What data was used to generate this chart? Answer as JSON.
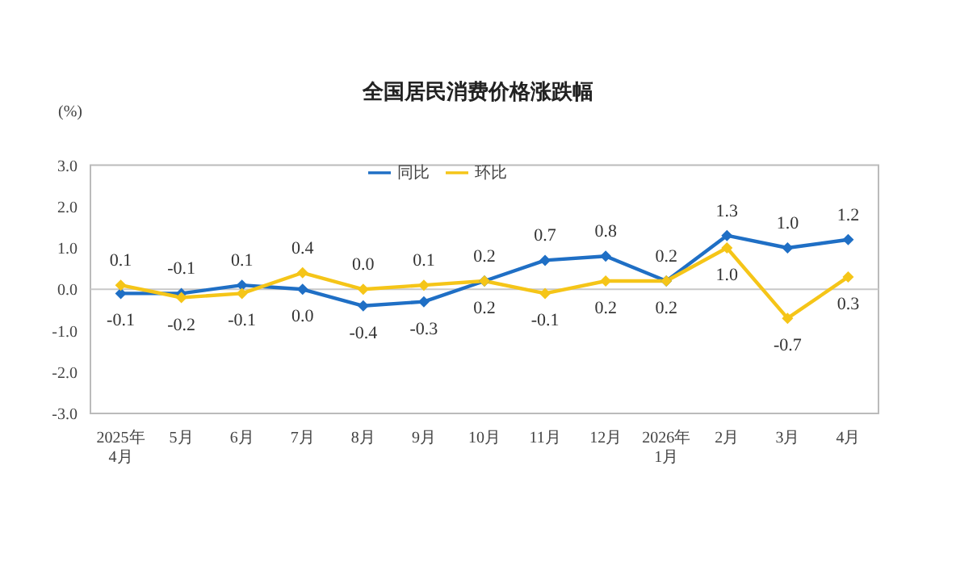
{
  "chart_data": {
    "type": "line",
    "title": "全国居民消费价格涨跌幅",
    "ylabel": "(%)",
    "categories": [
      "2025年\n4月",
      "5月",
      "6月",
      "7月",
      "8月",
      "9月",
      "10月",
      "11月",
      "12月",
      "2026年\n1月",
      "2月",
      "3月",
      "4月"
    ],
    "series": [
      {
        "name": "同比",
        "color": "#1f6fc5",
        "values": [
          -0.1,
          -0.1,
          0.1,
          0.0,
          -0.4,
          -0.3,
          0.2,
          0.7,
          0.8,
          0.2,
          1.3,
          1.0,
          1.2
        ],
        "value_labels": [
          "-0.1",
          "-0.1",
          "0.1",
          "0.0",
          "-0.4",
          "-0.3",
          "0.2",
          "0.7",
          "0.8",
          "0.2",
          "1.3",
          "1.0",
          "1.2"
        ]
      },
      {
        "name": "环比",
        "color": "#f5c518",
        "values": [
          0.1,
          -0.2,
          -0.1,
          0.4,
          0.0,
          0.1,
          0.2,
          -0.1,
          0.2,
          0.2,
          1.0,
          -0.7,
          0.3
        ],
        "value_labels": [
          "0.1",
          "-0.2",
          "-0.1",
          "0.4",
          "0.0",
          "0.1",
          "0.2",
          "-0.1",
          "0.2",
          "0.2",
          "1.0",
          "-0.7",
          "0.3"
        ]
      }
    ],
    "ylim": [
      -3.0,
      3.0
    ],
    "yticks": [
      {
        "value": -3,
        "label": "-3.0"
      },
      {
        "value": -2,
        "label": "-2.0"
      },
      {
        "value": -1,
        "label": "-1.0"
      },
      {
        "value": 0,
        "label": "0.0"
      },
      {
        "value": 1,
        "label": "1.0"
      },
      {
        "value": 2,
        "label": "2.0"
      },
      {
        "value": 3,
        "label": "3.0"
      }
    ],
    "ref_lines": [
      {
        "axis": "y",
        "value": 0,
        "color": "#c8c8c8"
      }
    ],
    "legend": "top",
    "marker": "diamond"
  }
}
